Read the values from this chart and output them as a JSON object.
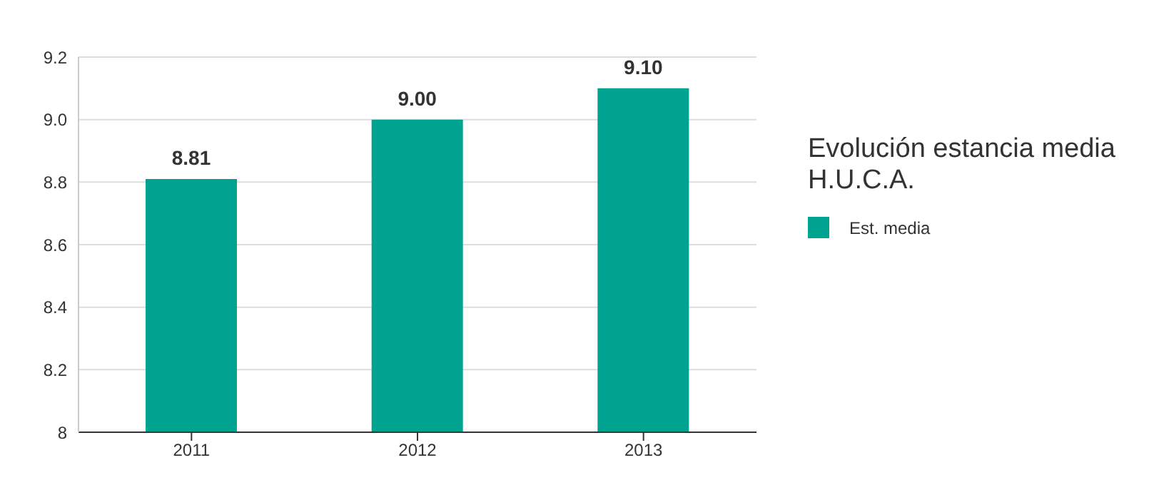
{
  "chart_data": {
    "type": "bar",
    "title": "Evolución estancia media H.U.C.A.",
    "categories": [
      "2011",
      "2012",
      "2013"
    ],
    "series": [
      {
        "name": "Est. media",
        "color": "#00a390",
        "values": [
          8.81,
          9.0,
          9.1
        ],
        "value_labels": [
          "8.81",
          "9.00",
          "9.10"
        ]
      }
    ],
    "ylim": [
      8,
      9.2
    ],
    "yticks": [
      8,
      8.2,
      8.4,
      8.6,
      8.8,
      {
        "value": 9,
        "label": "9.0"
      },
      9.2
    ],
    "grid": "y",
    "legend": "right"
  }
}
